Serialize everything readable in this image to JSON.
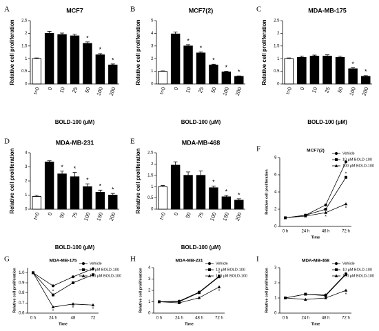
{
  "chart_data": [
    {
      "type": "bar",
      "panel": "A",
      "title": "MCF7",
      "ylabel": "Relative cell proliferation",
      "xlabel": "BOLD-100 (µM)",
      "categories": [
        "t=0",
        "0",
        "10",
        "25",
        "50",
        "100",
        "200"
      ],
      "values": [
        1.0,
        2.0,
        1.95,
        1.9,
        1.6,
        1.15,
        0.75
      ],
      "errors": [
        0.03,
        0.08,
        0.06,
        0.06,
        0.06,
        0.05,
        0.04
      ],
      "markers": [
        null,
        null,
        null,
        null,
        "*",
        "*",
        "*"
      ],
      "colors": [
        "#ffffff",
        "#000000",
        "#000000",
        "#000000",
        "#000000",
        "#000000",
        "#000000"
      ],
      "ylim": [
        0,
        2.5
      ],
      "yticks": [
        0.0,
        0.5,
        1.0,
        1.5,
        2.0,
        2.5
      ]
    },
    {
      "type": "bar",
      "panel": "B",
      "title": "MCF7(2)",
      "ylabel": "Relative cell proliferation",
      "xlabel": "BOLD-100 (µM)",
      "categories": [
        "t=0",
        "0",
        "10",
        "25",
        "50",
        "100",
        "200"
      ],
      "values": [
        1.0,
        3.95,
        3.0,
        2.45,
        1.5,
        0.95,
        0.6
      ],
      "errors": [
        0.03,
        0.15,
        0.1,
        0.08,
        0.06,
        0.05,
        0.04
      ],
      "markers": [
        null,
        null,
        "*",
        "*",
        "*",
        "*",
        "*"
      ],
      "colors": [
        "#ffffff",
        "#000000",
        "#000000",
        "#000000",
        "#000000",
        "#000000",
        "#000000"
      ],
      "ylim": [
        0,
        5
      ],
      "yticks": [
        0,
        1,
        2,
        3,
        4,
        5
      ]
    },
    {
      "type": "bar",
      "panel": "C",
      "title": "MDA-MB-175",
      "ylabel": "Relative cell proliferation",
      "xlabel": "BOLD-100 (µM)",
      "categories": [
        "t=0",
        "0",
        "10",
        "25",
        "50",
        "100",
        "200"
      ],
      "values": [
        1.0,
        1.05,
        1.1,
        1.1,
        1.05,
        0.6,
        0.3
      ],
      "errors": [
        0.03,
        0.05,
        0.04,
        0.05,
        0.05,
        0.04,
        0.03
      ],
      "markers": [
        null,
        null,
        null,
        null,
        null,
        "*",
        "*"
      ],
      "colors": [
        "#ffffff",
        "#000000",
        "#000000",
        "#000000",
        "#000000",
        "#000000",
        "#000000"
      ],
      "ylim": [
        0,
        2.5
      ],
      "yticks": [
        0.0,
        0.5,
        1.0,
        1.5,
        2.0,
        2.5
      ]
    },
    {
      "type": "bar",
      "panel": "D",
      "title": "MDA-MB-231",
      "ylabel": "Relative cell proliferation",
      "xlabel": "BOLD-100 (µM)",
      "categories": [
        "t=0",
        "0",
        "50",
        "75",
        "100",
        "150",
        "200"
      ],
      "values": [
        0.9,
        3.35,
        2.5,
        2.3,
        1.6,
        1.2,
        1.0
      ],
      "errors": [
        0.08,
        0.08,
        0.2,
        0.3,
        0.2,
        0.15,
        0.12
      ],
      "markers": [
        null,
        null,
        "*",
        "*",
        "*",
        "*",
        "*"
      ],
      "colors": [
        "#ffffff",
        "#000000",
        "#000000",
        "#000000",
        "#000000",
        "#000000",
        "#000000"
      ],
      "ylim": [
        0,
        4
      ],
      "yticks": [
        0,
        1,
        2,
        3,
        4
      ]
    },
    {
      "type": "bar",
      "panel": "E",
      "title": "MDA-MB-468",
      "ylabel": "Relative cell proliferation",
      "xlabel": "BOLD-100 (µM)",
      "categories": [
        "t=0",
        "0",
        "50",
        "75",
        "100",
        "150",
        "200"
      ],
      "values": [
        1.0,
        1.95,
        1.5,
        1.5,
        0.95,
        0.55,
        0.4
      ],
      "errors": [
        0.05,
        0.15,
        0.15,
        0.2,
        0.08,
        0.06,
        0.06
      ],
      "markers": [
        null,
        null,
        null,
        null,
        "*",
        "*",
        "*"
      ],
      "colors": [
        "#ffffff",
        "#000000",
        "#000000",
        "#000000",
        "#000000",
        "#000000",
        "#000000"
      ],
      "ylim": [
        0,
        2.5
      ],
      "yticks": [
        0.0,
        0.5,
        1.0,
        1.5,
        2.0,
        2.5
      ]
    },
    {
      "type": "line",
      "panel": "F",
      "title": "MCF7(2)",
      "ylabel": "Relative cell proliferation",
      "xlabel": "Time",
      "legend": "upper right",
      "categories": [
        "0 h",
        "24 h",
        "48 h",
        "72 h"
      ],
      "series": [
        {
          "name": "Vehicle",
          "color": "#000000",
          "marker": "circle",
          "values": [
            1,
            1.3,
            2.5,
            7.5
          ],
          "markers": [
            null,
            null,
            null,
            null
          ]
        },
        {
          "name": "10 μM BOLD-100",
          "color": "#000000",
          "marker": "square",
          "values": [
            1,
            1.3,
            2.0,
            5.7
          ],
          "markers": [
            null,
            null,
            null,
            "*"
          ]
        },
        {
          "name": "100 μM BOLD-100",
          "color": "#000000",
          "marker": "triangle",
          "values": [
            1,
            1.2,
            1.6,
            2.6
          ],
          "markers": [
            null,
            null,
            "*",
            "*"
          ]
        }
      ],
      "ylim": [
        0,
        8
      ],
      "yticks": [
        0,
        2,
        4,
        6,
        8
      ]
    },
    {
      "type": "line",
      "panel": "G",
      "title": "MDA-MB-175",
      "ylabel": "Relative cell proliferation",
      "xlabel": "Time",
      "legend": "upper right",
      "categories": [
        "0 h",
        "24 h",
        "48",
        "72"
      ],
      "series": [
        {
          "name": "Vehicle",
          "color": "#000000",
          "marker": "circle",
          "values": [
            1.0,
            0.87,
            0.96,
            1.04
          ],
          "markers": [
            null,
            null,
            null,
            null
          ]
        },
        {
          "name": "10 μM BOLD-100",
          "color": "#000000",
          "marker": "square",
          "values": [
            1.0,
            0.78,
            0.9,
            0.98
          ],
          "markers": [
            null,
            "*",
            null,
            null
          ]
        },
        {
          "name": "100 μM BOLD-100",
          "color": "#000000",
          "marker": "triangle",
          "values": [
            1.0,
            0.66,
            0.69,
            0.68
          ],
          "markers": [
            null,
            "*",
            "*",
            "*"
          ]
        }
      ],
      "ylim": [
        0.6,
        1.05
      ],
      "yticks": [
        0.6,
        0.7,
        0.8,
        0.9,
        {
          "value": 1,
          "label": "1.0"
        }
      ]
    },
    {
      "type": "line",
      "panel": "H",
      "title": "MDA-MB-231",
      "ylabel": "Relative cell proliferation",
      "xlabel": "Time",
      "legend": "upper right",
      "categories": [
        "0 h",
        "24 h",
        "48 h",
        "72 h"
      ],
      "series": [
        {
          "name": "Vehicle",
          "color": "#000000",
          "marker": "circle",
          "values": [
            1,
            1.05,
            1.85,
            3.25
          ],
          "markers": [
            null,
            null,
            null,
            null
          ]
        },
        {
          "name": "10 μM BOLD-100",
          "color": "#000000",
          "marker": "square",
          "values": [
            1,
            1.0,
            1.8,
            3.2
          ],
          "markers": [
            null,
            null,
            null,
            "*"
          ]
        },
        {
          "name": "100 μM BOLD-100",
          "color": "#000000",
          "marker": "triangle",
          "values": [
            1,
            0.9,
            1.35,
            2.3
          ],
          "markers": [
            null,
            null,
            null,
            "*"
          ]
        }
      ],
      "ylim": [
        0,
        4
      ],
      "yticks": [
        0,
        1,
        2,
        3,
        4
      ]
    },
    {
      "type": "line",
      "panel": "I",
      "title": "MDA-MB-468",
      "ylabel": "Relative cell proliferation",
      "xlabel": "Time",
      "legend": "upper right",
      "categories": [
        "0 h",
        "24 h",
        "48 h",
        "72 h"
      ],
      "series": [
        {
          "name": "Vehicle",
          "color": "#000000",
          "marker": "circle",
          "values": [
            1,
            1.25,
            1.2,
            2.6
          ],
          "markers": [
            null,
            null,
            null,
            null
          ]
        },
        {
          "name": "10 μM BOLD-100",
          "color": "#000000",
          "marker": "square",
          "values": [
            1,
            1.25,
            1.15,
            2.55
          ],
          "markers": [
            null,
            null,
            null,
            null
          ]
        },
        {
          "name": "100 μM BOLD-100",
          "color": "#000000",
          "marker": "triangle",
          "values": [
            1,
            0.9,
            1.0,
            1.5
          ],
          "markers": [
            null,
            null,
            null,
            "*"
          ]
        }
      ],
      "ylim": [
        0,
        3
      ],
      "yticks": [
        0,
        1,
        2,
        3
      ]
    }
  ]
}
